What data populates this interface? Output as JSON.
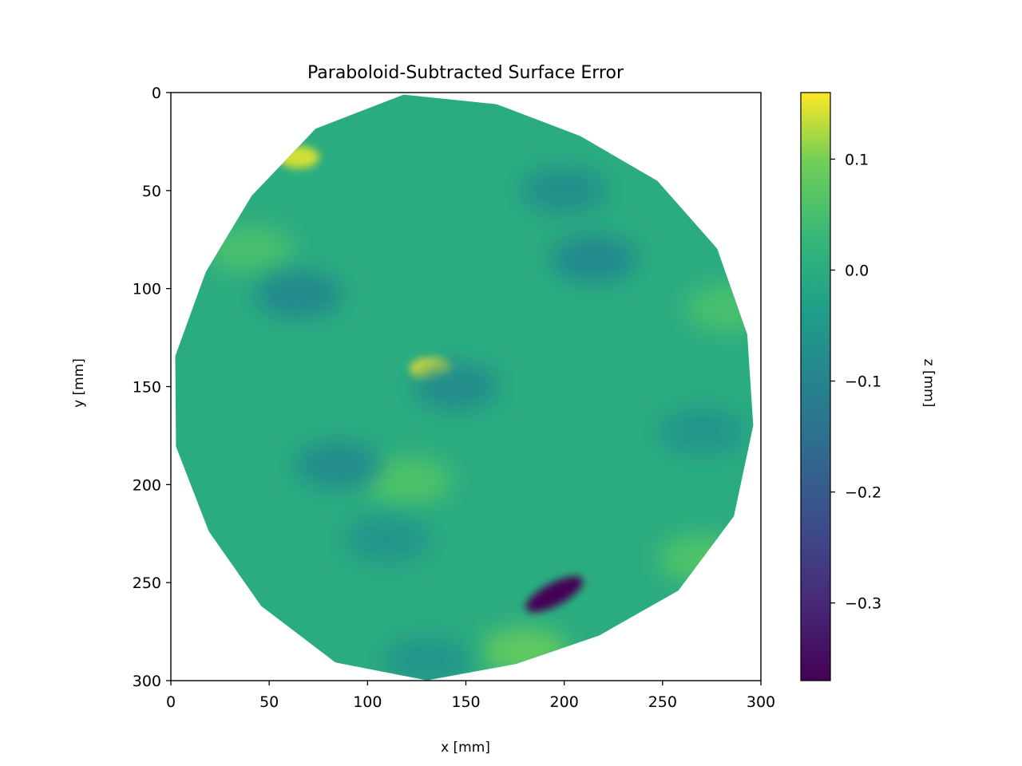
{
  "chart_data": {
    "type": "heatmap",
    "title": "Paraboloid-Subtracted Surface Error",
    "xlabel": "x [mm]",
    "ylabel": "y [mm]",
    "xlim": [
      0,
      300
    ],
    "ylim": [
      300,
      0
    ],
    "xticks": [
      0,
      50,
      100,
      150,
      200,
      250,
      300
    ],
    "yticks": [
      0,
      50,
      100,
      150,
      200,
      250,
      300
    ],
    "colorbar": {
      "label": "z [mm]",
      "range": [
        -0.37,
        0.16
      ],
      "ticks": [
        0.1,
        0.0,
        -0.1,
        -0.2,
        -0.3
      ],
      "tick_labels": [
        "0.1",
        "0.0",
        "−0.1",
        "−0.2",
        "−0.3"
      ],
      "colormap": "viridis"
    },
    "mask": {
      "shape": "roughly circular aperture",
      "center": [
        148,
        152
      ],
      "radius": 148
    },
    "features": [
      {
        "x": 195,
        "y": 256,
        "z": -0.37
      },
      {
        "x": 132,
        "y": 141,
        "z": 0.15
      },
      {
        "x": 65,
        "y": 33,
        "z": 0.14
      },
      {
        "x": 120,
        "y": 198,
        "z": 0.06
      },
      {
        "x": 284,
        "y": 110,
        "z": 0.05
      },
      {
        "x": 40,
        "y": 80,
        "z": 0.05
      },
      {
        "x": 180,
        "y": 285,
        "z": 0.08
      },
      {
        "x": 270,
        "y": 238,
        "z": 0.06
      },
      {
        "x": 65,
        "y": 103,
        "z": -0.09
      },
      {
        "x": 85,
        "y": 190,
        "z": -0.08
      },
      {
        "x": 200,
        "y": 50,
        "z": -0.07
      },
      {
        "x": 215,
        "y": 85,
        "z": -0.09
      },
      {
        "x": 145,
        "y": 150,
        "z": -0.08
      },
      {
        "x": 110,
        "y": 228,
        "z": -0.06
      },
      {
        "x": 270,
        "y": 173,
        "z": -0.06
      },
      {
        "x": 130,
        "y": 290,
        "z": -0.06
      }
    ]
  }
}
